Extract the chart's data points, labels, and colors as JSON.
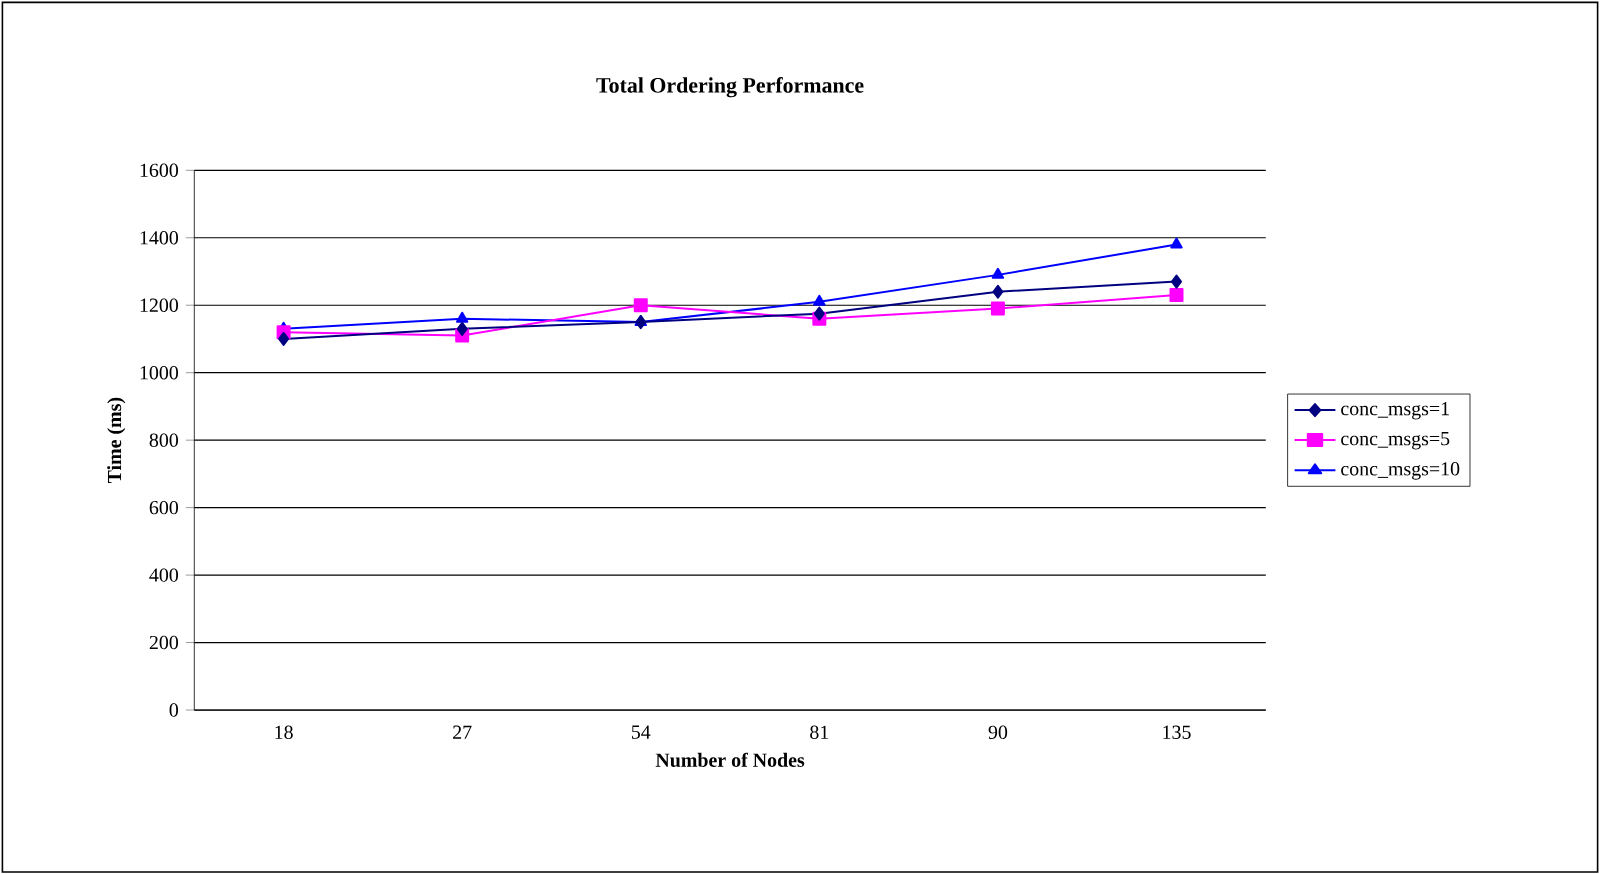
{
  "chart_data": {
    "type": "line",
    "title": "Total Ordering Performance",
    "xlabel": "Number of  Nodes",
    "ylabel": "Time (ms)",
    "categories": [
      "18",
      "27",
      "54",
      "81",
      "90",
      "135"
    ],
    "series": [
      {
        "name": "conc_msgs=1",
        "color": "#000080",
        "marker": "diamond",
        "values": [
          1100,
          1130,
          1150,
          1175,
          1240,
          1270
        ]
      },
      {
        "name": "conc_msgs=5",
        "color": "#ff00ff",
        "marker": "square",
        "values": [
          1120,
          1110,
          1200,
          1160,
          1190,
          1230
        ]
      },
      {
        "name": "conc_msgs=10",
        "color": "#0000ff",
        "marker": "triangle",
        "values": [
          1130,
          1160,
          1150,
          1210,
          1290,
          1380
        ]
      }
    ],
    "ylim": [
      0,
      1600
    ],
    "yticks": [
      0,
      200,
      400,
      600,
      800,
      1000,
      1200,
      1400,
      1600
    ],
    "grid": "y",
    "legend": "right",
    "line_style": "solid"
  }
}
